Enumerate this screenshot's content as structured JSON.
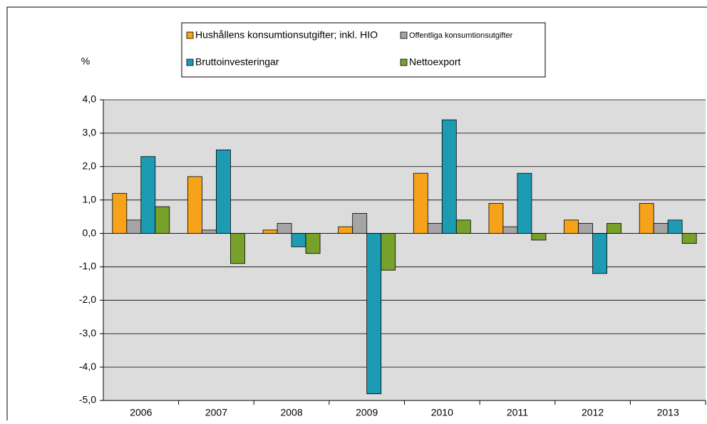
{
  "chart_data": {
    "type": "bar",
    "y_label": "%",
    "categories": [
      "2006",
      "2007",
      "2008",
      "2009",
      "2010",
      "2011",
      "2012",
      "2013"
    ],
    "series": [
      {
        "name": "Hushållens konsumtionsutgifter; inkl. HIO",
        "color": "#f7a21b",
        "values": [
          1.2,
          1.7,
          0.1,
          0.2,
          1.8,
          0.9,
          0.4,
          0.9
        ]
      },
      {
        "name": "Offentliga konsumtionsutgifter",
        "color": "#a5a5a5",
        "values": [
          0.4,
          0.1,
          0.3,
          0.6,
          0.3,
          0.2,
          0.3,
          0.3
        ]
      },
      {
        "name": "Bruttoinvesteringar",
        "color": "#1c9bb3",
        "values": [
          2.3,
          2.5,
          -0.4,
          -4.8,
          3.4,
          1.8,
          -1.2,
          0.4
        ]
      },
      {
        "name": "Nettoexport",
        "color": "#77a12b",
        "values": [
          0.8,
          -0.9,
          -0.6,
          -1.1,
          0.4,
          -0.2,
          0.3,
          -0.3
        ]
      }
    ],
    "ylim": [
      -5,
      4
    ],
    "yticks": [
      {
        "value": -5,
        "label": "-5,0"
      },
      {
        "value": -4,
        "label": "-4,0"
      },
      {
        "value": -3,
        "label": "-3,0"
      },
      {
        "value": -2,
        "label": "-2,0"
      },
      {
        "value": -1,
        "label": "-1,0"
      },
      {
        "value": 0,
        "label": "0,0"
      },
      {
        "value": 1,
        "label": "1,0"
      },
      {
        "value": 2,
        "label": "2,0"
      },
      {
        "value": 3,
        "label": "3,0"
      },
      {
        "value": 4,
        "label": "4,0"
      }
    ],
    "grid": true,
    "legend_position": "top"
  }
}
